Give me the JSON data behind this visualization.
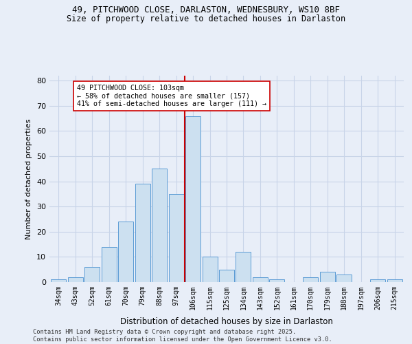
{
  "title_line1": "49, PITCHWOOD CLOSE, DARLASTON, WEDNESBURY, WS10 8BF",
  "title_line2": "Size of property relative to detached houses in Darlaston",
  "xlabel": "Distribution of detached houses by size in Darlaston",
  "ylabel": "Number of detached properties",
  "categories": [
    "34sqm",
    "43sqm",
    "52sqm",
    "61sqm",
    "70sqm",
    "79sqm",
    "88sqm",
    "97sqm",
    "106sqm",
    "115sqm",
    "125sqm",
    "134sqm",
    "143sqm",
    "152sqm",
    "161sqm",
    "170sqm",
    "179sqm",
    "188sqm",
    "197sqm",
    "206sqm",
    "215sqm"
  ],
  "values": [
    1,
    2,
    6,
    14,
    24,
    39,
    45,
    35,
    66,
    10,
    5,
    12,
    2,
    1,
    0,
    2,
    4,
    3,
    0,
    1,
    1
  ],
  "bar_color": "#cce0f0",
  "bar_edge_color": "#5b9bd5",
  "vline_color": "#cc0000",
  "vline_index": 8,
  "annotation_title": "49 PITCHWOOD CLOSE: 103sqm",
  "annotation_line1": "← 58% of detached houses are smaller (157)",
  "annotation_line2": "41% of semi-detached houses are larger (111) →",
  "annotation_box_facecolor": "#ffffff",
  "annotation_box_edgecolor": "#cc0000",
  "ylim": [
    0,
    82
  ],
  "yticks": [
    0,
    10,
    20,
    30,
    40,
    50,
    60,
    70,
    80
  ],
  "grid_color": "#c8d4e8",
  "background_color": "#e8eef8",
  "footer_line1": "Contains HM Land Registry data © Crown copyright and database right 2025.",
  "footer_line2": "Contains public sector information licensed under the Open Government Licence v3.0."
}
